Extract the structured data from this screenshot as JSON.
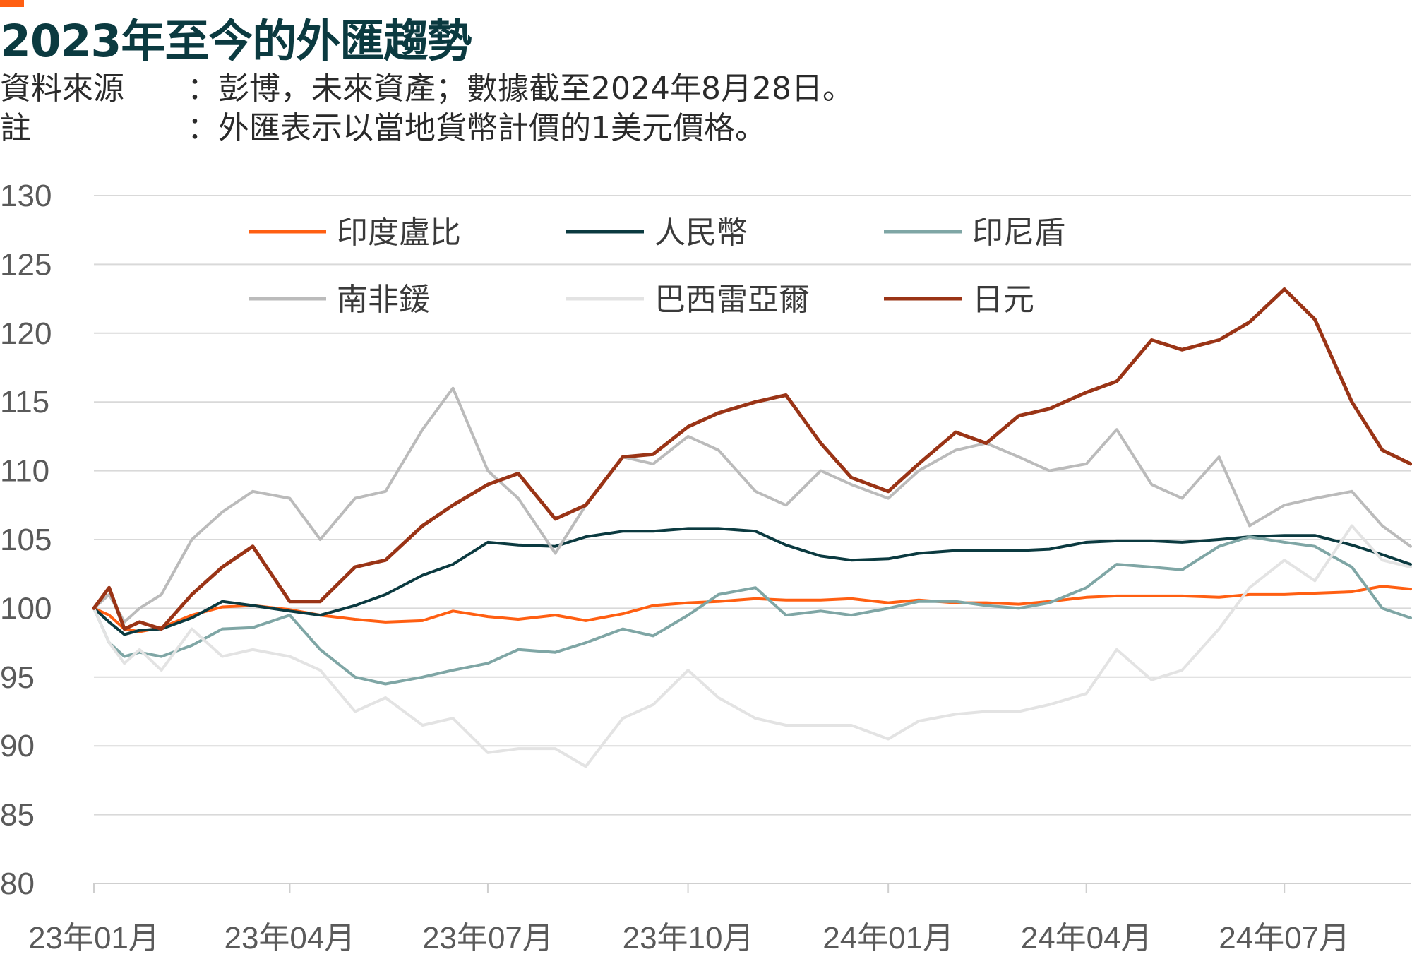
{
  "header": {
    "title": "2023年至今的外匯趨勢",
    "source_label": "資料來源",
    "source_text": "：彭博，未來資產；數據截至2024年8月28日。",
    "note_label": "註",
    "note_text": "：外匯表示以當地貨幣計價的1美元價格。"
  },
  "colors": {
    "accent": "#ff5f12",
    "title": "#0b3a40",
    "grid": "#d9d9d9"
  },
  "chart_data": {
    "type": "line",
    "title": "2023年至今的外匯趨勢",
    "xlabel": "",
    "ylabel": "",
    "ylim": [
      80,
      130
    ],
    "yticks": [
      130,
      125,
      120,
      115,
      110,
      105,
      100,
      95,
      90,
      85,
      80
    ],
    "xlim": [
      "2023-01-01",
      "2024-08-28"
    ],
    "xticks": [
      {
        "date": "2023-01-01",
        "label": "23年01月"
      },
      {
        "date": "2023-04-01",
        "label": "23年04月"
      },
      {
        "date": "2023-07-01",
        "label": "23年07月"
      },
      {
        "date": "2023-10-01",
        "label": "23年10月"
      },
      {
        "date": "2024-01-01",
        "label": "24年01月"
      },
      {
        "date": "2024-04-01",
        "label": "24年04月"
      },
      {
        "date": "2024-07-01",
        "label": "24年07月"
      }
    ],
    "grid": "horizontal",
    "legend_position": "top",
    "series": [
      {
        "name": "印度盧比",
        "color": "#ff5f12",
        "width": 4,
        "points": [
          [
            "2023-01-01",
            100
          ],
          [
            "2023-01-08",
            99.5
          ],
          [
            "2023-01-15",
            98.5
          ],
          [
            "2023-01-22",
            98.3
          ],
          [
            "2023-02-01",
            98.6
          ],
          [
            "2023-02-15",
            99.5
          ],
          [
            "2023-03-01",
            100.1
          ],
          [
            "2023-03-15",
            100.2
          ],
          [
            "2023-04-01",
            99.9
          ],
          [
            "2023-04-15",
            99.5
          ],
          [
            "2023-05-01",
            99.2
          ],
          [
            "2023-05-15",
            99
          ],
          [
            "2023-06-01",
            99.1
          ],
          [
            "2023-06-15",
            99.8
          ],
          [
            "2023-07-01",
            99.4
          ],
          [
            "2023-07-15",
            99.2
          ],
          [
            "2023-08-01",
            99.5
          ],
          [
            "2023-08-15",
            99.1
          ],
          [
            "2023-09-01",
            99.6
          ],
          [
            "2023-09-15",
            100.2
          ],
          [
            "2023-10-01",
            100.4
          ],
          [
            "2023-10-15",
            100.5
          ],
          [
            "2023-11-01",
            100.7
          ],
          [
            "2023-11-15",
            100.6
          ],
          [
            "2023-12-01",
            100.6
          ],
          [
            "2023-12-15",
            100.7
          ],
          [
            "2024-01-01",
            100.4
          ],
          [
            "2024-01-15",
            100.6
          ],
          [
            "2024-02-01",
            100.4
          ],
          [
            "2024-02-15",
            100.4
          ],
          [
            "2024-03-01",
            100.3
          ],
          [
            "2024-03-15",
            100.5
          ],
          [
            "2024-04-01",
            100.8
          ],
          [
            "2024-04-15",
            100.9
          ],
          [
            "2024-05-01",
            100.9
          ],
          [
            "2024-05-15",
            100.9
          ],
          [
            "2024-06-01",
            100.8
          ],
          [
            "2024-06-15",
            101
          ],
          [
            "2024-07-01",
            101
          ],
          [
            "2024-07-15",
            101.1
          ],
          [
            "2024-08-01",
            101.2
          ],
          [
            "2024-08-15",
            101.6
          ],
          [
            "2024-08-28",
            101.4
          ]
        ]
      },
      {
        "name": "人民幣",
        "color": "#0b3a40",
        "width": 4,
        "points": [
          [
            "2023-01-01",
            100
          ],
          [
            "2023-01-08",
            99
          ],
          [
            "2023-01-15",
            98.1
          ],
          [
            "2023-01-22",
            98.4
          ],
          [
            "2023-02-01",
            98.5
          ],
          [
            "2023-02-15",
            99.3
          ],
          [
            "2023-03-01",
            100.5
          ],
          [
            "2023-03-15",
            100.2
          ],
          [
            "2023-04-01",
            99.8
          ],
          [
            "2023-04-15",
            99.5
          ],
          [
            "2023-05-01",
            100.2
          ],
          [
            "2023-05-15",
            101
          ],
          [
            "2023-06-01",
            102.4
          ],
          [
            "2023-06-15",
            103.2
          ],
          [
            "2023-07-01",
            104.8
          ],
          [
            "2023-07-15",
            104.6
          ],
          [
            "2023-08-01",
            104.5
          ],
          [
            "2023-08-15",
            105.2
          ],
          [
            "2023-09-01",
            105.6
          ],
          [
            "2023-09-15",
            105.6
          ],
          [
            "2023-10-01",
            105.8
          ],
          [
            "2023-10-15",
            105.8
          ],
          [
            "2023-11-01",
            105.6
          ],
          [
            "2023-11-15",
            104.6
          ],
          [
            "2023-12-01",
            103.8
          ],
          [
            "2023-12-15",
            103.5
          ],
          [
            "2024-01-01",
            103.6
          ],
          [
            "2024-01-15",
            104
          ],
          [
            "2024-02-01",
            104.2
          ],
          [
            "2024-02-15",
            104.2
          ],
          [
            "2024-03-01",
            104.2
          ],
          [
            "2024-03-15",
            104.3
          ],
          [
            "2024-04-01",
            104.8
          ],
          [
            "2024-04-15",
            104.9
          ],
          [
            "2024-05-01",
            104.9
          ],
          [
            "2024-05-15",
            104.8
          ],
          [
            "2024-06-01",
            105
          ],
          [
            "2024-06-15",
            105.2
          ],
          [
            "2024-07-01",
            105.3
          ],
          [
            "2024-07-15",
            105.3
          ],
          [
            "2024-08-01",
            104.6
          ],
          [
            "2024-08-15",
            103.9
          ],
          [
            "2024-08-28",
            103.2
          ]
        ]
      },
      {
        "name": "印尼盾",
        "color": "#7fa6a5",
        "width": 4,
        "points": [
          [
            "2023-01-01",
            100
          ],
          [
            "2023-01-08",
            97.5
          ],
          [
            "2023-01-15",
            96.5
          ],
          [
            "2023-01-22",
            96.8
          ],
          [
            "2023-02-01",
            96.5
          ],
          [
            "2023-02-15",
            97.3
          ],
          [
            "2023-03-01",
            98.5
          ],
          [
            "2023-03-15",
            98.6
          ],
          [
            "2023-04-01",
            99.5
          ],
          [
            "2023-04-15",
            97
          ],
          [
            "2023-05-01",
            95
          ],
          [
            "2023-05-15",
            94.5
          ],
          [
            "2023-06-01",
            95
          ],
          [
            "2023-06-15",
            95.5
          ],
          [
            "2023-07-01",
            96
          ],
          [
            "2023-07-15",
            97
          ],
          [
            "2023-08-01",
            96.8
          ],
          [
            "2023-08-15",
            97.5
          ],
          [
            "2023-09-01",
            98.5
          ],
          [
            "2023-09-15",
            98
          ],
          [
            "2023-10-01",
            99.5
          ],
          [
            "2023-10-15",
            101
          ],
          [
            "2023-11-01",
            101.5
          ],
          [
            "2023-11-15",
            99.5
          ],
          [
            "2023-12-01",
            99.8
          ],
          [
            "2023-12-15",
            99.5
          ],
          [
            "2024-01-01",
            100
          ],
          [
            "2024-01-15",
            100.5
          ],
          [
            "2024-02-01",
            100.5
          ],
          [
            "2024-02-15",
            100.2
          ],
          [
            "2024-03-01",
            100
          ],
          [
            "2024-03-15",
            100.4
          ],
          [
            "2024-04-01",
            101.5
          ],
          [
            "2024-04-15",
            103.2
          ],
          [
            "2024-05-01",
            103
          ],
          [
            "2024-05-15",
            102.8
          ],
          [
            "2024-06-01",
            104.5
          ],
          [
            "2024-06-15",
            105.2
          ],
          [
            "2024-07-01",
            104.8
          ],
          [
            "2024-07-15",
            104.5
          ],
          [
            "2024-08-01",
            103
          ],
          [
            "2024-08-15",
            100
          ],
          [
            "2024-08-28",
            99.3
          ]
        ]
      },
      {
        "name": "南非鍰",
        "color": "#bbbbbb",
        "width": 4,
        "points": [
          [
            "2023-01-01",
            100
          ],
          [
            "2023-01-08",
            101
          ],
          [
            "2023-01-15",
            99
          ],
          [
            "2023-01-22",
            100
          ],
          [
            "2023-02-01",
            101
          ],
          [
            "2023-02-15",
            105
          ],
          [
            "2023-03-01",
            107
          ],
          [
            "2023-03-15",
            108.5
          ],
          [
            "2023-04-01",
            108
          ],
          [
            "2023-04-15",
            105
          ],
          [
            "2023-05-01",
            108
          ],
          [
            "2023-05-15",
            108.5
          ],
          [
            "2023-06-01",
            113
          ],
          [
            "2023-06-15",
            116
          ],
          [
            "2023-07-01",
            110
          ],
          [
            "2023-07-15",
            108
          ],
          [
            "2023-08-01",
            104
          ],
          [
            "2023-08-15",
            107.5
          ],
          [
            "2023-09-01",
            111
          ],
          [
            "2023-09-15",
            110.5
          ],
          [
            "2023-10-01",
            112.5
          ],
          [
            "2023-10-15",
            111.5
          ],
          [
            "2023-11-01",
            108.5
          ],
          [
            "2023-11-15",
            107.5
          ],
          [
            "2023-12-01",
            110
          ],
          [
            "2023-12-15",
            109
          ],
          [
            "2024-01-01",
            108
          ],
          [
            "2024-01-15",
            110
          ],
          [
            "2024-02-01",
            111.5
          ],
          [
            "2024-02-15",
            112
          ],
          [
            "2024-03-01",
            111
          ],
          [
            "2024-03-15",
            110
          ],
          [
            "2024-04-01",
            110.5
          ],
          [
            "2024-04-15",
            113
          ],
          [
            "2024-05-01",
            109
          ],
          [
            "2024-05-15",
            108
          ],
          [
            "2024-06-01",
            111
          ],
          [
            "2024-06-15",
            106
          ],
          [
            "2024-07-01",
            107.5
          ],
          [
            "2024-07-15",
            108
          ],
          [
            "2024-08-01",
            108.5
          ],
          [
            "2024-08-15",
            106
          ],
          [
            "2024-08-28",
            104.5
          ]
        ]
      },
      {
        "name": "巴西雷亞爾",
        "color": "#e3e3e3",
        "width": 4,
        "points": [
          [
            "2023-01-01",
            100
          ],
          [
            "2023-01-08",
            97.5
          ],
          [
            "2023-01-15",
            96
          ],
          [
            "2023-01-22",
            97
          ],
          [
            "2023-02-01",
            95.5
          ],
          [
            "2023-02-15",
            98.5
          ],
          [
            "2023-03-01",
            96.5
          ],
          [
            "2023-03-15",
            97
          ],
          [
            "2023-04-01",
            96.5
          ],
          [
            "2023-04-15",
            95.5
          ],
          [
            "2023-05-01",
            92.5
          ],
          [
            "2023-05-15",
            93.5
          ],
          [
            "2023-06-01",
            91.5
          ],
          [
            "2023-06-15",
            92
          ],
          [
            "2023-07-01",
            89.5
          ],
          [
            "2023-07-15",
            89.8
          ],
          [
            "2023-08-01",
            89.8
          ],
          [
            "2023-08-15",
            88.5
          ],
          [
            "2023-09-01",
            92
          ],
          [
            "2023-09-15",
            93
          ],
          [
            "2023-10-01",
            95.5
          ],
          [
            "2023-10-15",
            93.5
          ],
          [
            "2023-11-01",
            92
          ],
          [
            "2023-11-15",
            91.5
          ],
          [
            "2023-12-01",
            91.5
          ],
          [
            "2023-12-15",
            91.5
          ],
          [
            "2024-01-01",
            90.5
          ],
          [
            "2024-01-15",
            91.8
          ],
          [
            "2024-02-01",
            92.3
          ],
          [
            "2024-02-15",
            92.5
          ],
          [
            "2024-03-01",
            92.5
          ],
          [
            "2024-03-15",
            93
          ],
          [
            "2024-04-01",
            93.8
          ],
          [
            "2024-04-15",
            97
          ],
          [
            "2024-05-01",
            94.8
          ],
          [
            "2024-05-15",
            95.5
          ],
          [
            "2024-06-01",
            98.5
          ],
          [
            "2024-06-15",
            101.5
          ],
          [
            "2024-07-01",
            103.5
          ],
          [
            "2024-07-15",
            102
          ],
          [
            "2024-08-01",
            106
          ],
          [
            "2024-08-15",
            103.5
          ],
          [
            "2024-08-28",
            103
          ]
        ]
      },
      {
        "name": "日元",
        "color": "#9a3416",
        "width": 5,
        "points": [
          [
            "2023-01-01",
            100
          ],
          [
            "2023-01-08",
            101.5
          ],
          [
            "2023-01-15",
            98.5
          ],
          [
            "2023-01-22",
            99
          ],
          [
            "2023-02-01",
            98.5
          ],
          [
            "2023-02-15",
            101
          ],
          [
            "2023-03-01",
            103
          ],
          [
            "2023-03-15",
            104.5
          ],
          [
            "2023-04-01",
            100.5
          ],
          [
            "2023-04-15",
            100.5
          ],
          [
            "2023-05-01",
            103
          ],
          [
            "2023-05-15",
            103.5
          ],
          [
            "2023-06-01",
            106
          ],
          [
            "2023-06-15",
            107.5
          ],
          [
            "2023-07-01",
            109
          ],
          [
            "2023-07-15",
            109.8
          ],
          [
            "2023-08-01",
            106.5
          ],
          [
            "2023-08-15",
            107.5
          ],
          [
            "2023-09-01",
            111
          ],
          [
            "2023-09-15",
            111.2
          ],
          [
            "2023-10-01",
            113.2
          ],
          [
            "2023-10-15",
            114.2
          ],
          [
            "2023-11-01",
            115
          ],
          [
            "2023-11-15",
            115.5
          ],
          [
            "2023-12-01",
            112
          ],
          [
            "2023-12-15",
            109.5
          ],
          [
            "2024-01-01",
            108.5
          ],
          [
            "2024-01-15",
            110.5
          ],
          [
            "2024-02-01",
            112.8
          ],
          [
            "2024-02-15",
            112
          ],
          [
            "2024-03-01",
            114
          ],
          [
            "2024-03-15",
            114.5
          ],
          [
            "2024-04-01",
            115.7
          ],
          [
            "2024-04-15",
            116.5
          ],
          [
            "2024-05-01",
            119.5
          ],
          [
            "2024-05-15",
            118.8
          ],
          [
            "2024-06-01",
            119.5
          ],
          [
            "2024-06-15",
            120.8
          ],
          [
            "2024-07-01",
            123.2
          ],
          [
            "2024-07-15",
            121
          ],
          [
            "2024-08-01",
            115
          ],
          [
            "2024-08-15",
            111.5
          ],
          [
            "2024-08-28",
            110.5
          ]
        ]
      }
    ]
  }
}
